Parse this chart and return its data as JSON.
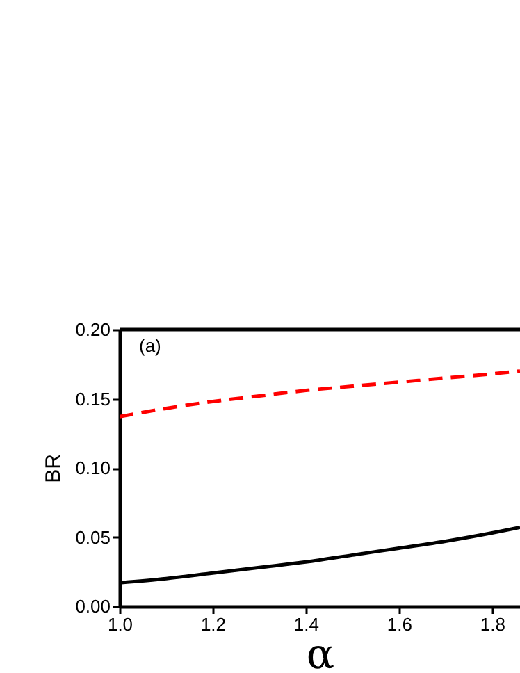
{
  "chart_data": {
    "type": "line",
    "xlabel": "α",
    "ylabel": "BR",
    "annotations": [
      "(a)"
    ],
    "xlim": [
      1.0,
      1.86
    ],
    "xticks": [
      {
        "value": 1.0,
        "label": "1.0"
      },
      {
        "value": 1.2,
        "label": "1.2"
      },
      {
        "value": 1.4,
        "label": "1.4"
      },
      {
        "value": 1.6,
        "label": "1.6"
      },
      {
        "value": 1.8,
        "label": "1.8"
      }
    ],
    "ylim": [
      0,
      0.2
    ],
    "yticks": [
      {
        "value": 0,
        "label": "0.00"
      },
      {
        "value": 0.05,
        "label": "0.05"
      },
      {
        "value": 0.1,
        "label": "0.10"
      },
      {
        "value": 0.15,
        "label": "0.15"
      },
      {
        "value": 0.2,
        "label": "0.20"
      }
    ],
    "x": [
      1.0,
      1.1,
      1.2,
      1.3,
      1.4,
      1.5,
      1.6,
      1.7,
      1.8,
      1.86
    ],
    "grid": false,
    "legend": false,
    "series": [
      {
        "color": "#000000",
        "line_style": "solid",
        "values": [
          0.017,
          0.02,
          0.024,
          0.028,
          0.032,
          0.037,
          0.042,
          0.047,
          0.053,
          0.057
        ]
      },
      {
        "color": "#ff0000",
        "line_style": "dashed",
        "values": [
          0.137,
          0.143,
          0.148,
          0.152,
          0.156,
          0.159,
          0.162,
          0.165,
          0.168,
          0.17
        ]
      }
    ]
  }
}
